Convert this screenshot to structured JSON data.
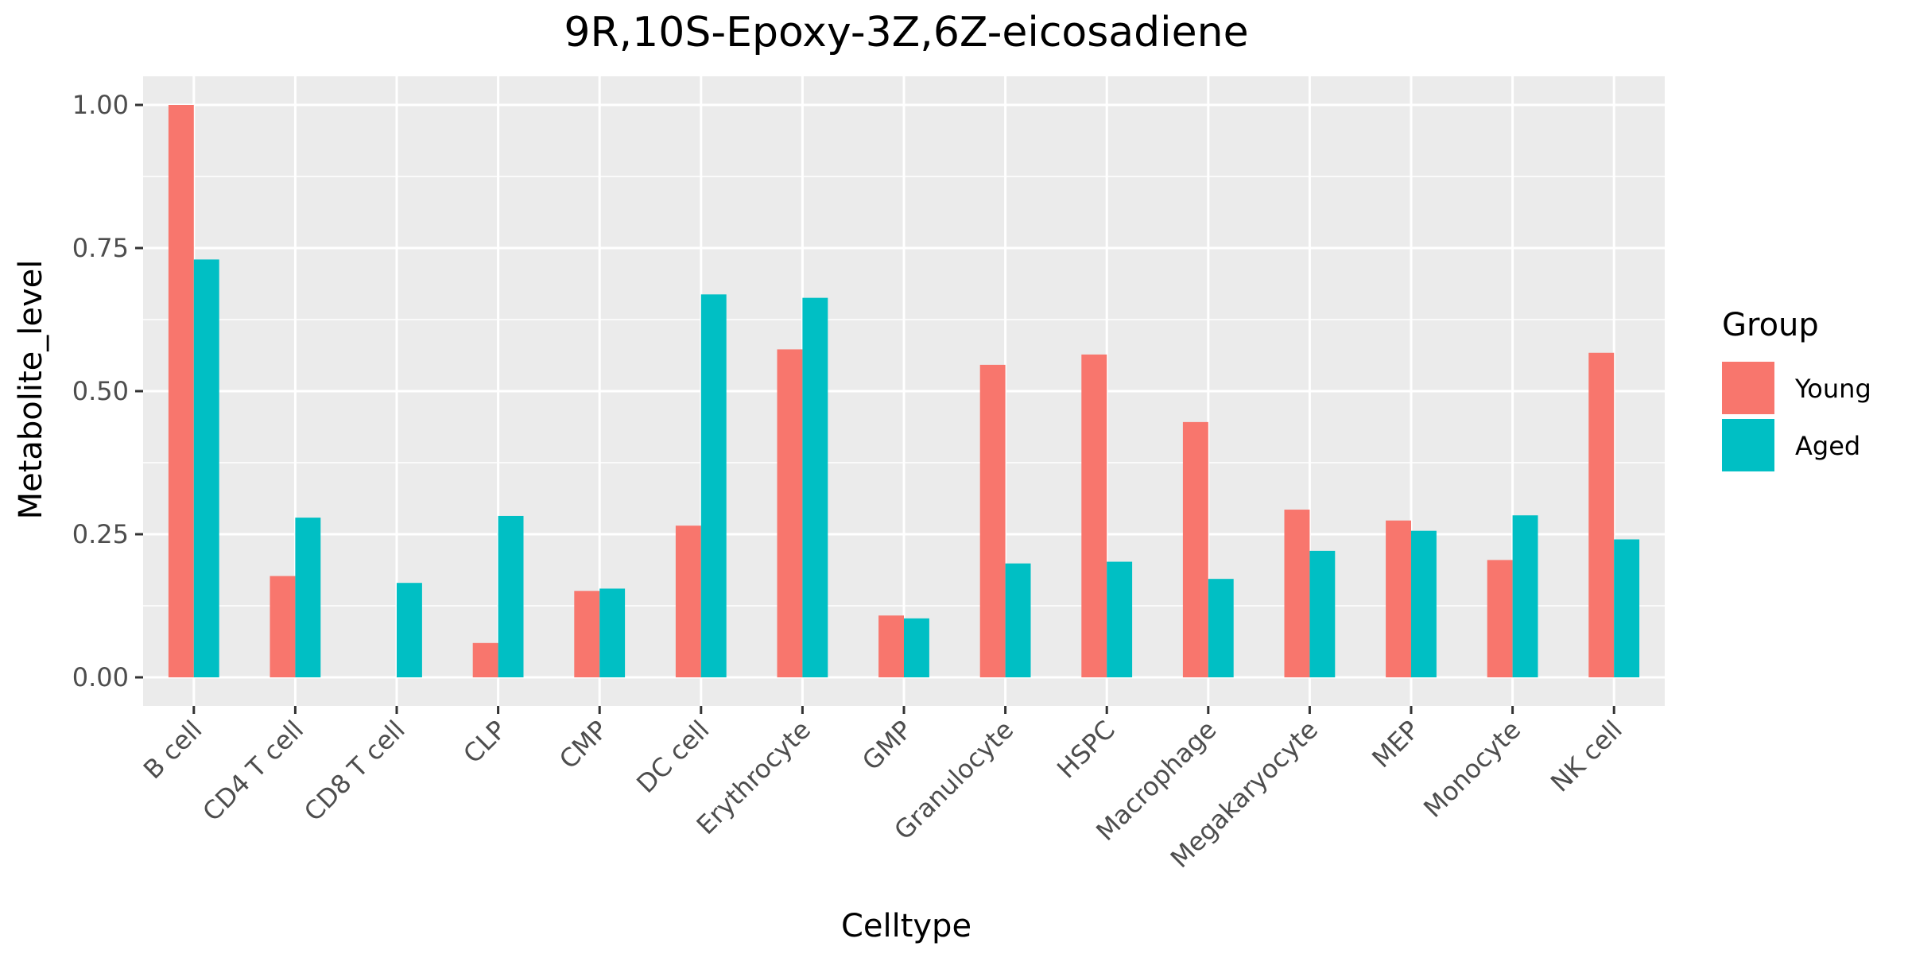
{
  "chart_data": {
    "type": "bar",
    "title": "9R,10S-Epoxy-3Z,6Z-eicosadiene",
    "xlabel": "Celltype",
    "ylabel": "Metabolite_level",
    "ylim": [
      -0.05,
      1.05
    ],
    "yticks": [
      0.0,
      0.25,
      0.5,
      0.75,
      1.0
    ],
    "ytick_labels": [
      "0.00",
      "0.25",
      "0.50",
      "0.75",
      "1.00"
    ],
    "grid": true,
    "legend_position": "right",
    "legend_title": "Group",
    "categories": [
      "B cell",
      "CD4 T cell",
      "CD8 T cell",
      "CLP",
      "CMP",
      "DC cell",
      "Erythrocyte",
      "GMP",
      "Granulocyte",
      "HSPC",
      "Macrophage",
      "Megakaryocyte",
      "MEP",
      "Monocyte",
      "NK cell"
    ],
    "series": [
      {
        "name": "Young",
        "color": "#F8766D",
        "values": [
          1.0,
          0.177,
          0.0,
          0.06,
          0.151,
          0.265,
          0.573,
          0.108,
          0.546,
          0.564,
          0.446,
          0.293,
          0.274,
          0.205,
          0.567
        ]
      },
      {
        "name": "Aged",
        "color": "#00BFC4",
        "values": [
          0.73,
          0.279,
          0.165,
          0.282,
          0.155,
          0.669,
          0.663,
          0.103,
          0.199,
          0.202,
          0.172,
          0.221,
          0.256,
          0.283,
          0.241
        ]
      }
    ]
  }
}
